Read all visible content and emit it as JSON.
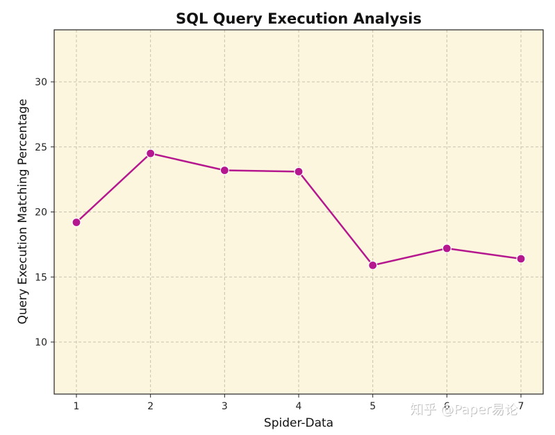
{
  "chart_data": {
    "type": "line",
    "title": "SQL Query Execution Analysis",
    "xlabel": "Spider-Data",
    "ylabel": "Query Execution Matching Percentage",
    "x": [
      1,
      2,
      3,
      4,
      5,
      6,
      7
    ],
    "series": [
      {
        "values": [
          19.2,
          24.5,
          23.2,
          23.1,
          15.9,
          17.2,
          16.4
        ]
      }
    ],
    "xticks": [
      "1",
      "2",
      "3",
      "4",
      "5",
      "6",
      "7"
    ],
    "yticks": [
      "10",
      "15",
      "20",
      "25",
      "30"
    ],
    "xlim": [
      0.7,
      7.3
    ],
    "ylim": [
      6,
      34
    ],
    "grid": true,
    "line_color": "#b5178e",
    "plot_background": "#fcf6df",
    "grid_color": "#c8c0ad"
  },
  "watermark": "知乎 @Paper易论"
}
